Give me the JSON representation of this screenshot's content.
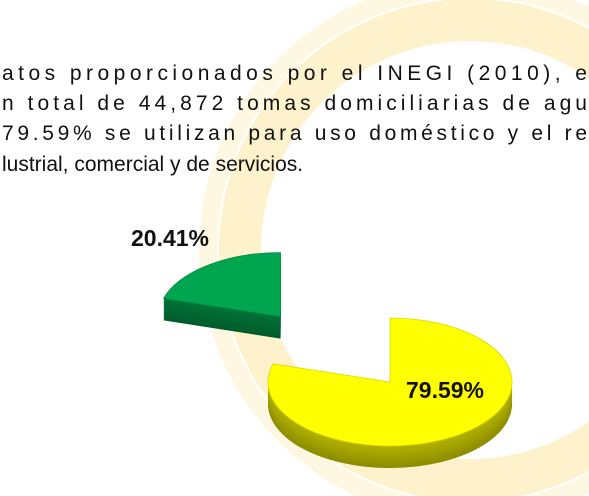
{
  "text": {
    "lines": [
      "atos proporcionados por el INEGI (2010), e",
      "n total de 44,872 tomas domiciliarias de agu",
      "79.59% se utilizan para uso doméstico y el re",
      "lustrial, comercial y de servicios."
    ]
  },
  "chart_data": {
    "type": "pie",
    "three_d": true,
    "exploded": true,
    "values": [
      20.41,
      79.59
    ],
    "value_labels": [
      "20.41%",
      "79.59%"
    ],
    "colors": [
      "#00a64f",
      "#ffff00"
    ]
  }
}
